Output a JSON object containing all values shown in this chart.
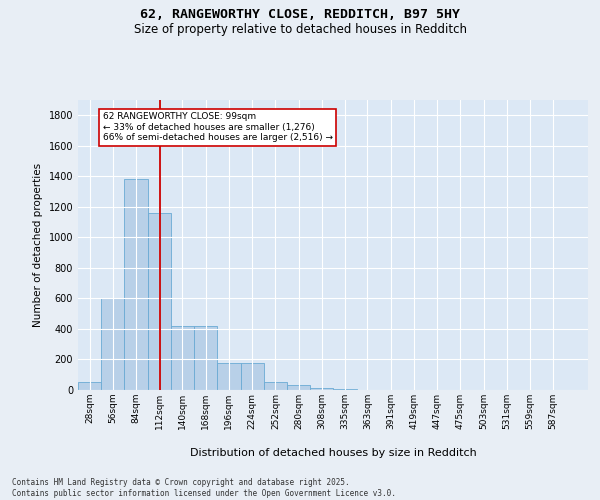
{
  "title1": "62, RANGEWORTHY CLOSE, REDDITCH, B97 5HY",
  "title2": "Size of property relative to detached houses in Redditch",
  "xlabel": "Distribution of detached houses by size in Redditch",
  "ylabel": "Number of detached properties",
  "bar_values": [
    50,
    600,
    1380,
    1160,
    420,
    420,
    180,
    180,
    55,
    30,
    15,
    5,
    0,
    0,
    0,
    0,
    0,
    0,
    0,
    0,
    0
  ],
  "bin_labels": [
    "28sqm",
    "56sqm",
    "84sqm",
    "112sqm",
    "140sqm",
    "168sqm",
    "196sqm",
    "224sqm",
    "252sqm",
    "280sqm",
    "308sqm",
    "335sqm",
    "363sqm",
    "391sqm",
    "419sqm",
    "447sqm",
    "475sqm",
    "503sqm",
    "531sqm",
    "559sqm",
    "587sqm"
  ],
  "bin_edges": [
    0,
    28,
    56,
    84,
    112,
    140,
    168,
    196,
    224,
    252,
    280,
    308,
    335,
    363,
    391,
    419,
    447,
    475,
    503,
    531,
    559,
    587
  ],
  "bar_color": "#b8d0e8",
  "bar_edge_color": "#6aaad4",
  "vline_x": 99,
  "vline_color": "#cc0000",
  "annotation_text": "62 RANGEWORTHY CLOSE: 99sqm\n← 33% of detached houses are smaller (1,276)\n66% of semi-detached houses are larger (2,516) →",
  "annotation_box_color": "#ffffff",
  "annotation_box_edge": "#cc0000",
  "ylim": [
    0,
    1900
  ],
  "yticks": [
    0,
    200,
    400,
    600,
    800,
    1000,
    1200,
    1400,
    1600,
    1800
  ],
  "footer_line1": "Contains HM Land Registry data © Crown copyright and database right 2025.",
  "footer_line2": "Contains public sector information licensed under the Open Government Licence v3.0.",
  "bg_color": "#e8eef5",
  "plot_bg_color": "#dce8f5",
  "grid_color": "#ffffff"
}
